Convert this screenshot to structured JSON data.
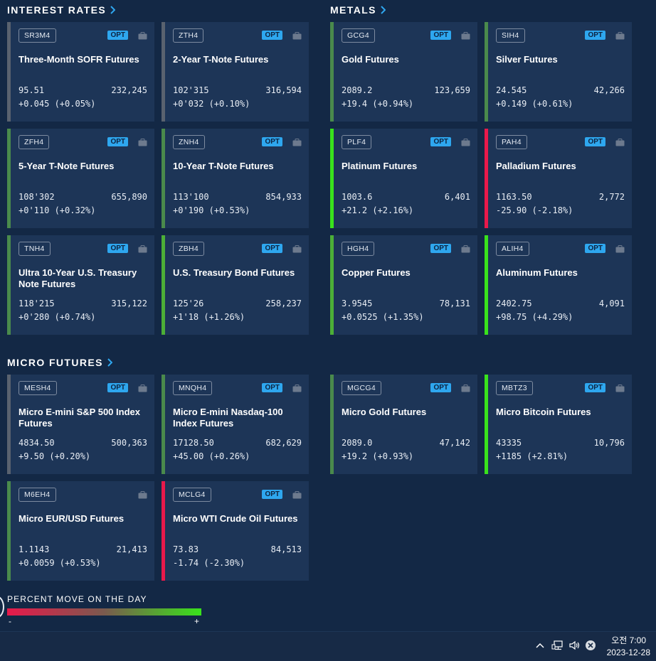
{
  "sections": {
    "interest_rates": "INTEREST RATES",
    "metals": "METALS",
    "micro_futures": "MICRO FUTURES"
  },
  "opt_label": "OPT",
  "colors": {
    "background": "#132845",
    "card": "#1d3557",
    "neutral_accent": "#59626f",
    "mild_up": "#4a8a4c",
    "strong_up": "#39e21c",
    "down": "#e8194b",
    "opt_badge": "#2ea7ef"
  },
  "cards": [
    {
      "symbol": "SR3M4",
      "name": "Three-Month SOFR Futures",
      "price": "95.51",
      "volume": "232,245",
      "change": "+0.045 (+0.05%)",
      "opt": true,
      "accent": "#59626f"
    },
    {
      "symbol": "ZTH4",
      "name": "2-Year T-Note Futures",
      "price": "102'315",
      "volume": "316,594",
      "change": "+0'032 (+0.10%)",
      "opt": true,
      "accent": "#59626f"
    },
    {
      "symbol": "ZFH4",
      "name": "5-Year T-Note Futures",
      "price": "108'302",
      "volume": "655,890",
      "change": "+0'110 (+0.32%)",
      "opt": true,
      "accent": "#4a8a4c"
    },
    {
      "symbol": "ZNH4",
      "name": "10-Year T-Note Futures",
      "price": "113'100",
      "volume": "854,933",
      "change": "+0'190 (+0.53%)",
      "opt": true,
      "accent": "#4a8a4c"
    },
    {
      "symbol": "TNH4",
      "name": "Ultra 10-Year U.S. Treasury Note Futures",
      "price": "118'215",
      "volume": "315,122",
      "change": "+0'280 (+0.74%)",
      "opt": true,
      "accent": "#4a8a4c"
    },
    {
      "symbol": "ZBH4",
      "name": "U.S. Treasury Bond Futures",
      "price": "125'26",
      "volume": "258,237",
      "change": "+1'18 (+1.26%)",
      "opt": true,
      "accent": "#4caf37"
    },
    {
      "symbol": "GCG4",
      "name": "Gold Futures",
      "price": "2089.2",
      "volume": "123,659",
      "change": "+19.4 (+0.94%)",
      "opt": true,
      "accent": "#4a8a4c"
    },
    {
      "symbol": "SIH4",
      "name": "Silver Futures",
      "price": "24.545",
      "volume": "42,266",
      "change": "+0.149 (+0.61%)",
      "opt": true,
      "accent": "#4a8a4c"
    },
    {
      "symbol": "PLF4",
      "name": "Platinum Futures",
      "price": "1003.6",
      "volume": "6,401",
      "change": "+21.2 (+2.16%)",
      "opt": true,
      "accent": "#39e21c"
    },
    {
      "symbol": "PAH4",
      "name": "Palladium Futures",
      "price": "1163.50",
      "volume": "2,772",
      "change": "-25.90 (-2.18%)",
      "opt": true,
      "accent": "#e8194b"
    },
    {
      "symbol": "HGH4",
      "name": "Copper Futures",
      "price": "3.9545",
      "volume": "78,131",
      "change": "+0.0525 (+1.35%)",
      "opt": true,
      "accent": "#4caf37"
    },
    {
      "symbol": "ALIH4",
      "name": "Aluminum Futures",
      "price": "2402.75",
      "volume": "4,091",
      "change": "+98.75 (+4.29%)",
      "opt": true,
      "accent": "#39e21c"
    },
    {
      "symbol": "MESH4",
      "name": "Micro E-mini S&P 500 Index Futures",
      "price": "4834.50",
      "volume": "500,363",
      "change": "+9.50 (+0.20%)",
      "opt": true,
      "accent": "#59626f"
    },
    {
      "symbol": "MNQH4",
      "name": "Micro E-mini Nasdaq-100 Index Futures",
      "price": "17128.50",
      "volume": "682,629",
      "change": "+45.00 (+0.26%)",
      "opt": true,
      "accent": "#4a8a4c"
    },
    {
      "symbol": "MGCG4",
      "name": "Micro Gold Futures",
      "price": "2089.0",
      "volume": "47,142",
      "change": "+19.2 (+0.93%)",
      "opt": true,
      "accent": "#4a8a4c"
    },
    {
      "symbol": "MBTZ3",
      "name": "Micro Bitcoin Futures",
      "price": "43335",
      "volume": "10,796",
      "change": "+1185 (+2.81%)",
      "opt": true,
      "accent": "#39e21c"
    },
    {
      "symbol": "M6EH4",
      "name": "Micro EUR/USD Futures",
      "price": "1.1143",
      "volume": "21,413",
      "change": "+0.0059 (+0.53%)",
      "opt": false,
      "accent": "#4a8a4c"
    },
    {
      "symbol": "MCLG4",
      "name": "Micro WTI Crude Oil Futures",
      "price": "73.83",
      "volume": "84,513",
      "change": "-1.74 (-2.30%)",
      "opt": true,
      "accent": "#e8194b"
    }
  ],
  "legend": {
    "title": "PERCENT MOVE ON THE DAY",
    "minus": "-",
    "plus": "+"
  },
  "taskbar": {
    "time": "오전 7:00",
    "date": "2023-12-28"
  }
}
